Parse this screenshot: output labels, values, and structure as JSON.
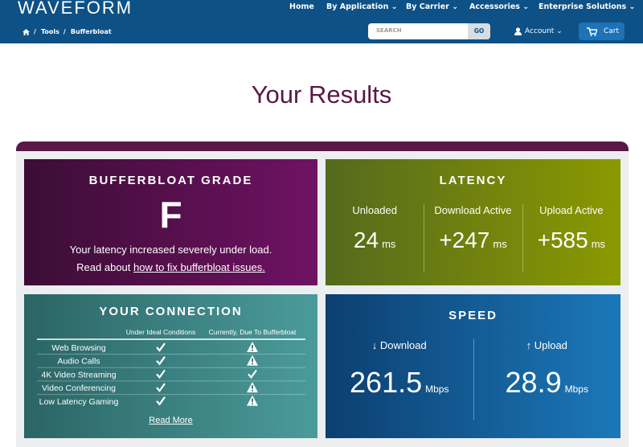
{
  "header": {
    "logo": "WAVEFORM",
    "nav": [
      "Home",
      "By Application",
      "By Carrier",
      "Accessories",
      "Enterprise Solutions"
    ],
    "breadcrumb": [
      "Tools",
      "Bufferbloat"
    ],
    "search_placeholder": "SEARCH",
    "search_button": "GO",
    "account": "Account",
    "cart": "Cart"
  },
  "title": "Your Results",
  "grade": {
    "title": "BUFFERBLOAT GRADE",
    "grade": "F",
    "text": "Your latency increased severely under load.",
    "link_prefix": "Read about ",
    "link": "how to fix bufferbloat issues."
  },
  "latency": {
    "title": "LATENCY",
    "items": [
      {
        "label": "Unloaded",
        "value": "24",
        "unit": "ms"
      },
      {
        "label": "Download Active",
        "value": "+247",
        "unit": "ms"
      },
      {
        "label": "Upload Active",
        "value": "+585",
        "unit": "ms"
      }
    ]
  },
  "connection": {
    "title": "YOUR CONNECTION",
    "columns": [
      "Under Ideal Conditions",
      "Currently, Due To Bufferbloat"
    ],
    "rows": [
      {
        "name": "Web Browsing",
        "ideal": "ok",
        "current": "warn"
      },
      {
        "name": "Audio Calls",
        "ideal": "ok",
        "current": "warn"
      },
      {
        "name": "4K Video Streaming",
        "ideal": "ok",
        "current": "ok"
      },
      {
        "name": "Video Conferencing",
        "ideal": "ok",
        "current": "warn"
      },
      {
        "name": "Low Latency Gaming",
        "ideal": "ok",
        "current": "warn"
      }
    ],
    "link": "Read More"
  },
  "speed": {
    "title": "SPEED",
    "items": [
      {
        "label": "↓ Download",
        "value": "261.5",
        "unit": "Mbps"
      },
      {
        "label": "↑ Upload",
        "value": "28.9",
        "unit": "Mbps"
      }
    ]
  }
}
